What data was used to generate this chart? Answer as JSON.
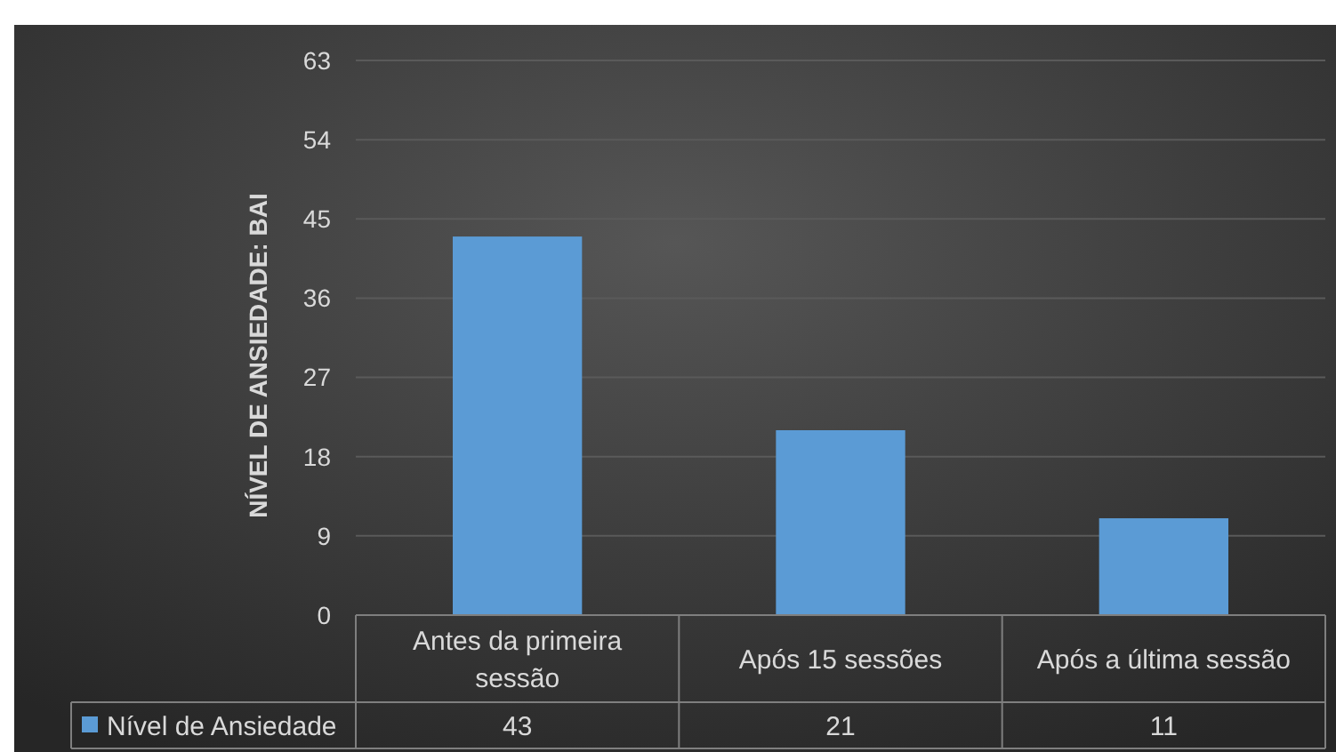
{
  "chart_data": {
    "type": "bar",
    "ylabel": "NÍVEL DE ANSIEDADE: BAI",
    "categories": [
      "Antes da primeira sessão",
      "Após 15 sessões",
      "Após a última sessão"
    ],
    "series": [
      {
        "name": "Nível de Ansiedade",
        "color": "#5b9bd5",
        "values": [
          43,
          21,
          11
        ]
      }
    ],
    "ylim": [
      0,
      63
    ],
    "yticks": [
      0,
      9,
      18,
      27,
      36,
      45,
      54,
      63
    ],
    "grid": "y",
    "data_labels": true,
    "legend": "bottom left"
  }
}
